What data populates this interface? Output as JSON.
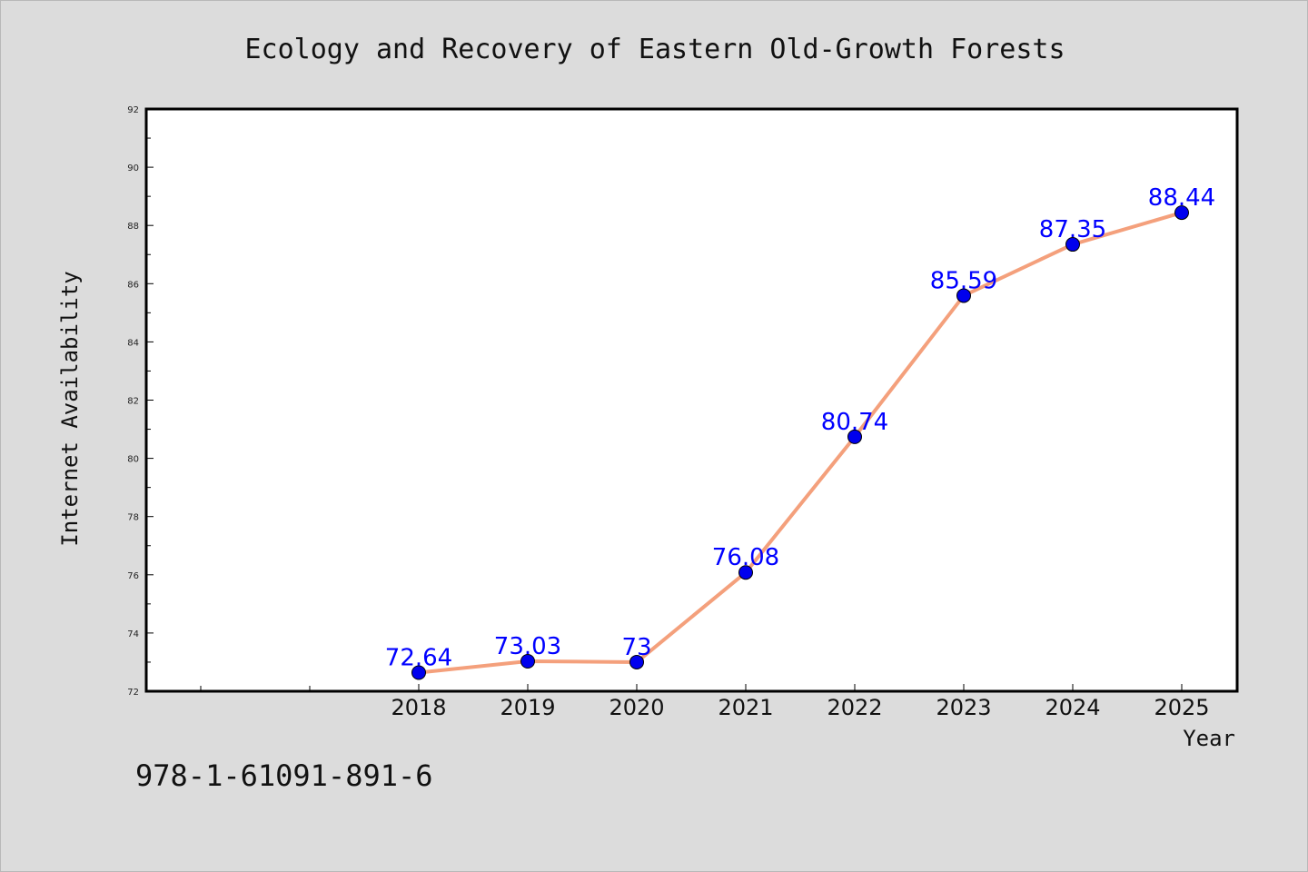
{
  "chart_data": {
    "type": "line",
    "title": "Ecology and Recovery of Eastern Old-Growth Forests",
    "xlabel": "Year",
    "ylabel": "Internet Availability",
    "categories": [
      "2018",
      "2019",
      "2020",
      "2021",
      "2022",
      "2023",
      "2024",
      "2025"
    ],
    "series": [
      {
        "values": [
          72.64,
          73.03,
          73,
          76.08,
          80.74,
          85.59,
          87.35,
          88.44
        ],
        "labels": [
          "72.64",
          "73.03",
          "73",
          "76.08",
          "80.74",
          "85.59",
          "87.35",
          "88.44"
        ],
        "line_color": "#f4a07c",
        "marker_color": "#0000ee"
      }
    ],
    "ylim": [
      72,
      92
    ],
    "yticks": [
      "72",
      "74",
      "76",
      "78",
      "80",
      "82",
      "84",
      "86",
      "88",
      "90",
      "92"
    ],
    "grid": false,
    "legend": "none"
  },
  "footer": {
    "isbn": "978-1-61091-891-6"
  }
}
